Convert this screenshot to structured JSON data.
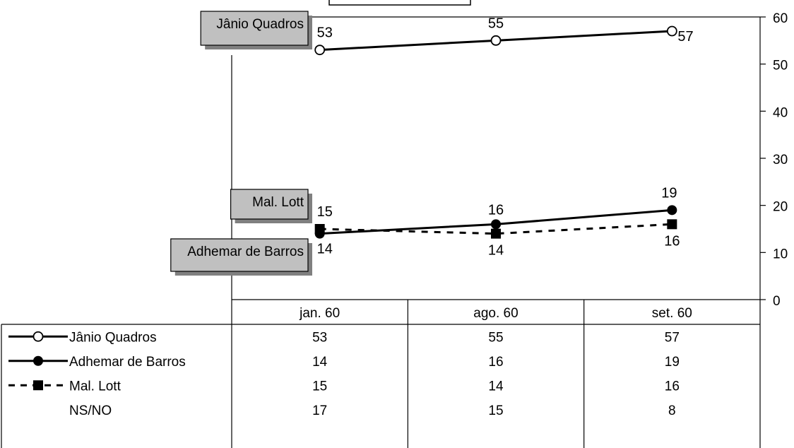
{
  "chart_data": {
    "type": "line",
    "title": "",
    "xlabel": "",
    "ylabel": "",
    "categories": [
      "jan. 60",
      "ago. 60",
      "set. 60"
    ],
    "ylim": [
      0,
      60
    ],
    "yticks": [
      0,
      10,
      20,
      30,
      40,
      50,
      60
    ],
    "y_axis_side": "right",
    "grid": false,
    "series": [
      {
        "name": "Jânio Quadros",
        "values": [
          53,
          55,
          57
        ],
        "marker": "open-circle",
        "line": "solid",
        "plotted": true,
        "color": "#000000"
      },
      {
        "name": "Adhemar de Barros",
        "values": [
          14,
          16,
          19
        ],
        "marker": "filled-circle",
        "line": "solid",
        "plotted": true,
        "color": "#000000"
      },
      {
        "name": "Mal. Lott",
        "values": [
          15,
          14,
          16
        ],
        "marker": "filled-square",
        "line": "dashed",
        "plotted": true,
        "color": "#000000"
      },
      {
        "name": "NS/NO",
        "values": [
          17,
          15,
          8
        ],
        "marker": "none",
        "line": "none",
        "plotted": false,
        "color": "#000000"
      }
    ],
    "callouts": [
      "Jânio Quadros",
      "Mal. Lott",
      "Adhemar de Barros"
    ],
    "callout_fill": "#c0c0c0",
    "callout_shadow": "#808080"
  }
}
